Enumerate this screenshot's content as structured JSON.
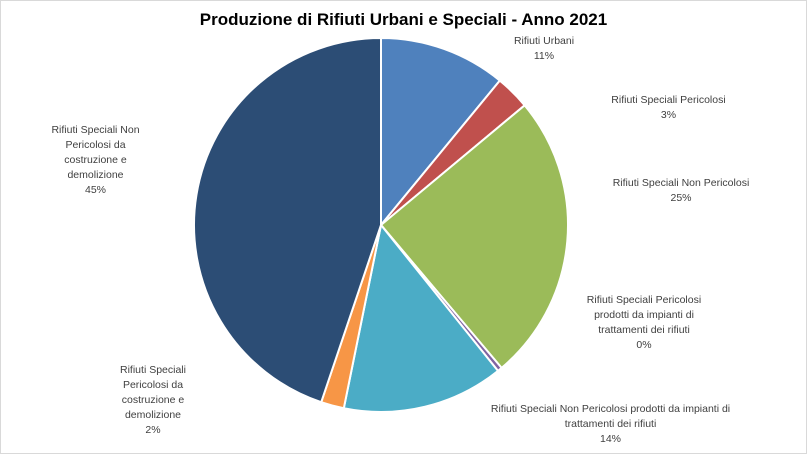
{
  "chart_data": {
    "type": "pie",
    "title": "Produzione di Rifiuti Urbani  e Speciali - Anno 2021",
    "start_angle": "top (12 o'clock), clockwise",
    "slices": [
      {
        "label": "Rifiuti Urbani",
        "value": 11,
        "display": "11%",
        "color": "#4F81BD"
      },
      {
        "label": "Rifiuti Speciali Pericolosi",
        "value": 3,
        "display": "3%",
        "color": "#C0504D"
      },
      {
        "label": "Rifiuti Speciali Non Pericolosi",
        "value": 25,
        "display": "25%",
        "color": "#9BBB59"
      },
      {
        "label": "Rifiuti Speciali Pericolosi prodotti da impianti di trattamenti dei rifiuti",
        "value": 0.4,
        "display": "0%",
        "color": "#8064A2"
      },
      {
        "label": "Rifiuti Speciali Non Pericolosi prodotti da impianti di trattamenti dei rifiuti",
        "value": 14,
        "display": "14%",
        "color": "#4BACC6"
      },
      {
        "label": "Rifiuti Speciali Pericolosi da costruzione e demolizione",
        "value": 2,
        "display": "2%",
        "color": "#F79646"
      },
      {
        "label": "Rifiuti Speciali Non Pericolosi da costruzione e demolizione",
        "value": 45,
        "display": "45%",
        "color": "#2C4D75"
      }
    ]
  }
}
